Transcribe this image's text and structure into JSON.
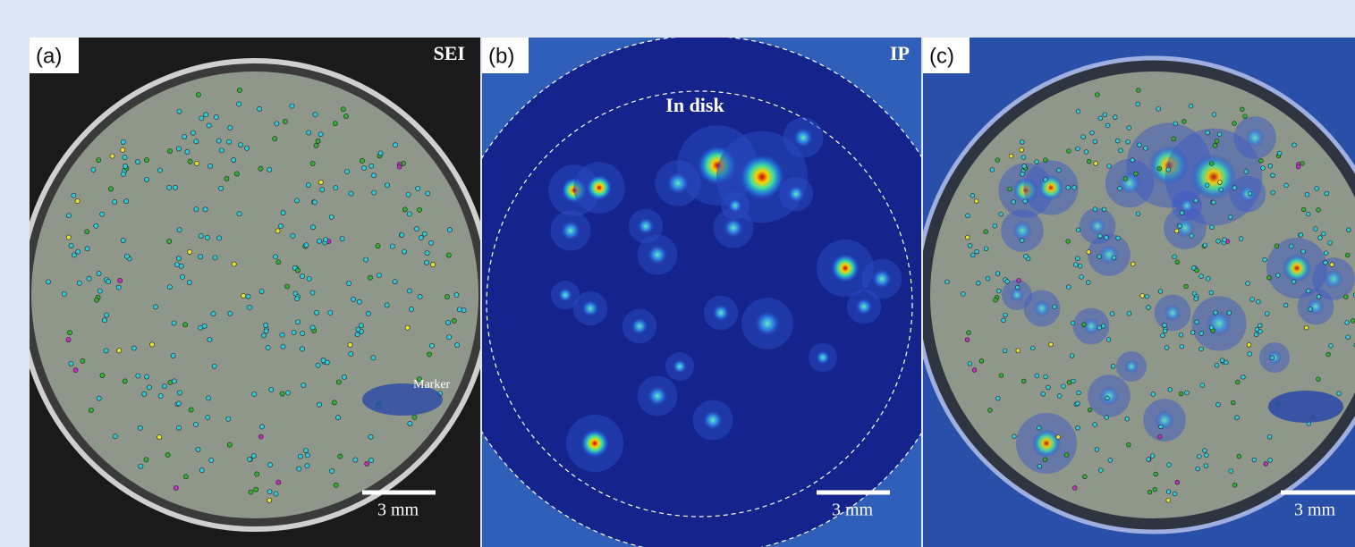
{
  "panels": [
    {
      "label": "(a)",
      "title": "SEI",
      "annotation": "Marker",
      "scale_bar": "3 mm"
    },
    {
      "label": "(b)",
      "title": "IP",
      "annotation": "In disk",
      "scale_bar": "3 mm"
    },
    {
      "label": "(c)",
      "scale_bar": "3 mm"
    }
  ]
}
